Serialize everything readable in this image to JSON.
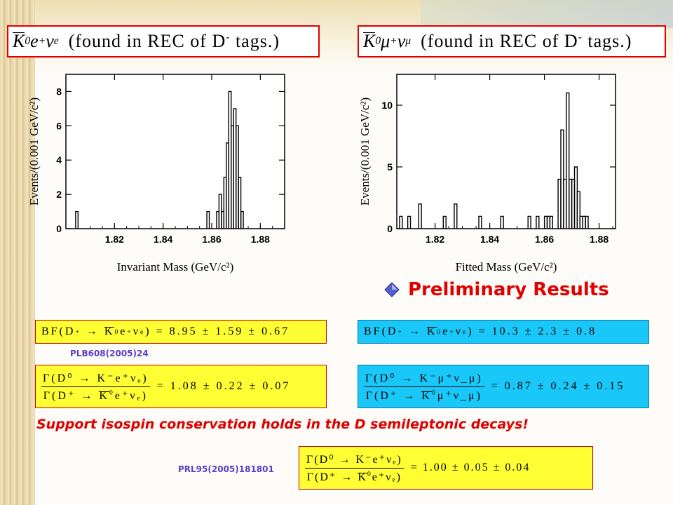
{
  "titles": {
    "left": {
      "lhs_symbol": "K",
      "lhs_sup": "0",
      "lep": "e",
      "lep_sup": "+",
      "nu": "ν",
      "nu_sub": "e",
      "rest": "(found in REC of D",
      "rest_sup": "-",
      "rest_end": " tags.)"
    },
    "right": {
      "lhs_symbol": "K",
      "lhs_sup": "0",
      "lep": "μ",
      "lep_sup": "+",
      "nu": "ν",
      "nu_sub": "μ",
      "rest": "(found in REC of D",
      "rest_sup": "-",
      "rest_end": " tags.)"
    }
  },
  "chart_data": [
    {
      "type": "histogram",
      "xlabel": "Invariant Mass (GeV/c²)",
      "ylabel": "Events/(0.001 GeV/c²)",
      "xlim": [
        1.8,
        1.89
      ],
      "ylim": [
        0,
        9
      ],
      "xticks": [
        "1.82",
        "1.84",
        "1.86",
        "1.88"
      ],
      "yticks": [
        "0",
        "2",
        "4",
        "6",
        "8"
      ],
      "bin_width": 0.001,
      "x": [
        1.804,
        1.858,
        1.862,
        1.863,
        1.864,
        1.865,
        1.866,
        1.867,
        1.868,
        1.869,
        1.87,
        1.871,
        1.872
      ],
      "values": [
        1,
        1,
        1,
        2,
        1,
        3,
        5,
        8,
        6,
        7,
        6,
        3,
        1
      ]
    },
    {
      "type": "histogram",
      "xlabel": "Fitted Mass (GeV/c²)",
      "ylabel": "Events/(0.001 GeV/c²)",
      "xlim": [
        1.806,
        1.886
      ],
      "ylim": [
        0,
        12.5
      ],
      "xticks": [
        "1.82",
        "1.84",
        "1.86",
        "1.88"
      ],
      "yticks": [
        "0",
        "5",
        "10"
      ],
      "bin_width": 0.001,
      "x": [
        1.807,
        1.81,
        1.814,
        1.823,
        1.827,
        1.836,
        1.844,
        1.854,
        1.857,
        1.86,
        1.861,
        1.862,
        1.865,
        1.866,
        1.867,
        1.868,
        1.869,
        1.87,
        1.871,
        1.872,
        1.873,
        1.874,
        1.875
      ],
      "values": [
        1,
        1,
        2,
        1,
        2,
        1,
        1,
        1,
        1,
        1,
        1,
        1,
        4,
        8,
        4,
        11,
        4,
        4,
        5,
        3,
        1,
        1,
        1
      ]
    }
  ],
  "prelim_label": "Preliminary Results",
  "formulas": {
    "bf_left": {
      "lhs": "BF(D",
      "lhs_sup": "+",
      "arrow": "→",
      "k": "K",
      "k_sup": "0",
      "rest": "e",
      "rest_sup": "+",
      "nu": "ν",
      "nu_sub": "e",
      "value": ") = 8.95 ± 1.59 ± 0.67"
    },
    "bf_right": {
      "lhs": "BF(D",
      "lhs_sup": "+",
      "arrow": "→",
      "k": "K",
      "k_sup": "0",
      "rest": "e",
      "rest_sup": "+",
      "nu": "ν",
      "nu_sub": "e",
      "value": ") = 10.3 ± 2.3 ± 0.8"
    },
    "ratio_left": {
      "num": "Γ(D⁰ → K⁻e⁺νₑ)",
      "den_a": "Γ(D⁺ → ",
      "den_k": "K",
      "den_k_sup": "0",
      "den_b": "e⁺νₑ)",
      "value": "= 1.08 ± 0.22 ± 0.07"
    },
    "ratio_right": {
      "num": "Γ(D⁰ → K⁻μ⁺ν_μ)",
      "den_a": "Γ(D⁺ → ",
      "den_k": "K",
      "den_k_sup": "0",
      "den_b": "μ⁺ν_μ)",
      "value": "= 0.87 ± 0.24 ± 0.15"
    },
    "ratio_bottom": {
      "num": "Γ(D⁰ → K⁻e⁺νₑ)",
      "den_a": "Γ(D⁺ → ",
      "den_k": "K",
      "den_k_sup": "0",
      "den_b": "e⁺νₑ)",
      "value": "= 1.00 ± 0.05 ± 0.04"
    }
  },
  "refs": {
    "plb": "PLB608(2005)24",
    "prl": "PRL95(2005)181801"
  },
  "support_text": "Support isospin conservation holds in the D semileptonic decays!",
  "colors": {
    "accent_red": "#e00000",
    "yellow_box": "#ffff33",
    "cyan_box": "#19c8f8",
    "ref_text": "#5a3ec8"
  }
}
